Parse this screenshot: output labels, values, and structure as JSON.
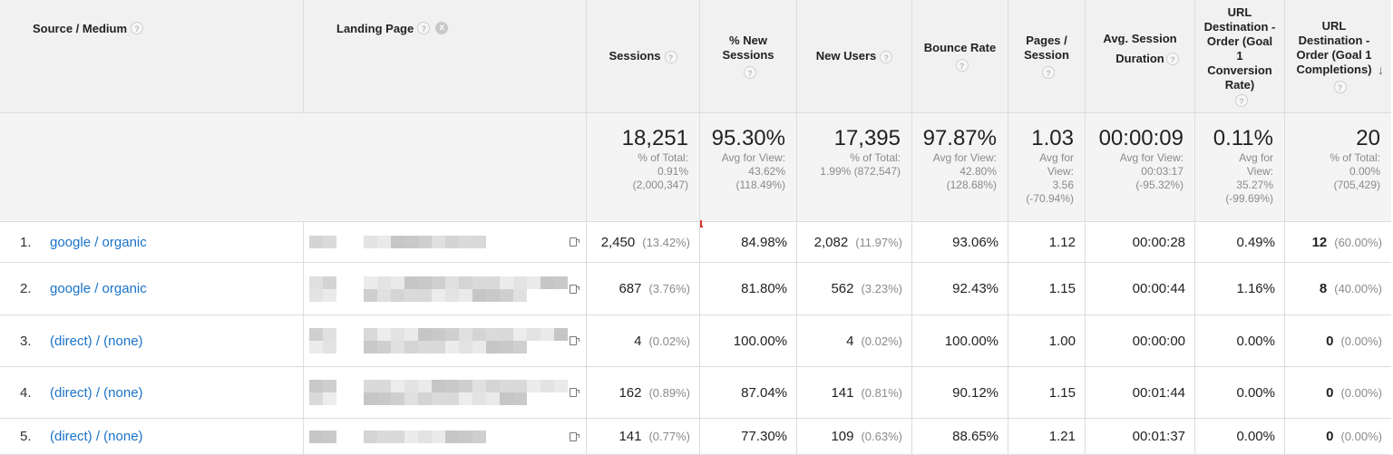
{
  "headers": {
    "source_medium": "Source / Medium",
    "landing_page": "Landing Page",
    "sessions": "Sessions",
    "pct_new_sessions": "% New Sessions",
    "new_users": "New Users",
    "bounce_rate": "Bounce Rate",
    "pages_session": "Pages / Session",
    "avg_session_duration": "Avg. Session Duration",
    "goal_conv_rate": "URL Destination - Order (Goal 1 Conversion Rate)",
    "goal_completions": "URL Destination - Order (Goal 1 Completions)"
  },
  "icons": {
    "help": "?",
    "remove": "x",
    "sort_desc": "↓"
  },
  "totals": {
    "sessions": {
      "value": "18,251",
      "l1": "% of Total:",
      "l2": "0.91%",
      "l3": "(2,000,347)",
      "l4": ""
    },
    "pct_new_sessions": {
      "value": "95.30%",
      "l1": "Avg for View:",
      "l2": "43.62%",
      "l3": "(118.49%)",
      "l4": ""
    },
    "new_users": {
      "value": "17,395",
      "l1": "% of Total:",
      "l2": "1.99% (872,547)",
      "l3": "",
      "l4": ""
    },
    "bounce_rate": {
      "value": "97.87%",
      "l1": "Avg for View:",
      "l2": "42.80%",
      "l3": "(128.68%)",
      "l4": ""
    },
    "pages_session": {
      "value": "1.03",
      "l1": "Avg for",
      "l2": "View:",
      "l3": "3.56",
      "l4": "(-70.94%)"
    },
    "avg_session_duration": {
      "value": "00:00:09",
      "l1": "Avg for View:",
      "l2": "00:03:17",
      "l3": "(-95.32%)",
      "l4": ""
    },
    "goal_conv_rate": {
      "value": "0.11%",
      "l1": "Avg for",
      "l2": "View:",
      "l3": "35.27%",
      "l4": "(-99.69%)"
    },
    "goal_completions": {
      "value": "20",
      "l1": "% of Total:",
      "l2": "0.00%",
      "l3": "(705,429)",
      "l4": ""
    }
  },
  "rows": [
    {
      "num": "1.",
      "source": "google / organic",
      "sessions": "2,450",
      "sessions_pct": "(13.42%)",
      "new_sessions": "84.98%",
      "new_users": "2,082",
      "new_users_pct": "(11.97%)",
      "bounce": "93.06%",
      "pages": "1.12",
      "duration": "00:00:28",
      "conv": "0.49%",
      "completions": "12",
      "completions_pct": "(60.00%)"
    },
    {
      "num": "2.",
      "source": "google / organic",
      "sessions": "687",
      "sessions_pct": "(3.76%)",
      "new_sessions": "81.80%",
      "new_users": "562",
      "new_users_pct": "(3.23%)",
      "bounce": "92.43%",
      "pages": "1.15",
      "duration": "00:00:44",
      "conv": "1.16%",
      "completions": "8",
      "completions_pct": "(40.00%)"
    },
    {
      "num": "3.",
      "source": "(direct) / (none)",
      "sessions": "4",
      "sessions_pct": "(0.02%)",
      "new_sessions": "100.00%",
      "new_users": "4",
      "new_users_pct": "(0.02%)",
      "bounce": "100.00%",
      "pages": "1.00",
      "duration": "00:00:00",
      "conv": "0.00%",
      "completions": "0",
      "completions_pct": "(0.00%)"
    },
    {
      "num": "4.",
      "source": "(direct) / (none)",
      "sessions": "162",
      "sessions_pct": "(0.89%)",
      "new_sessions": "87.04%",
      "new_users": "141",
      "new_users_pct": "(0.81%)",
      "bounce": "90.12%",
      "pages": "1.15",
      "duration": "00:01:44",
      "conv": "0.00%",
      "completions": "0",
      "completions_pct": "(0.00%)"
    },
    {
      "num": "5.",
      "source": "(direct) / (none)",
      "sessions": "141",
      "sessions_pct": "(0.77%)",
      "new_sessions": "77.30%",
      "new_users": "109",
      "new_users_pct": "(0.63%)",
      "bounce": "88.65%",
      "pages": "1.21",
      "duration": "00:01:37",
      "conv": "0.00%",
      "completions": "0",
      "completions_pct": "(0.00%)"
    }
  ]
}
